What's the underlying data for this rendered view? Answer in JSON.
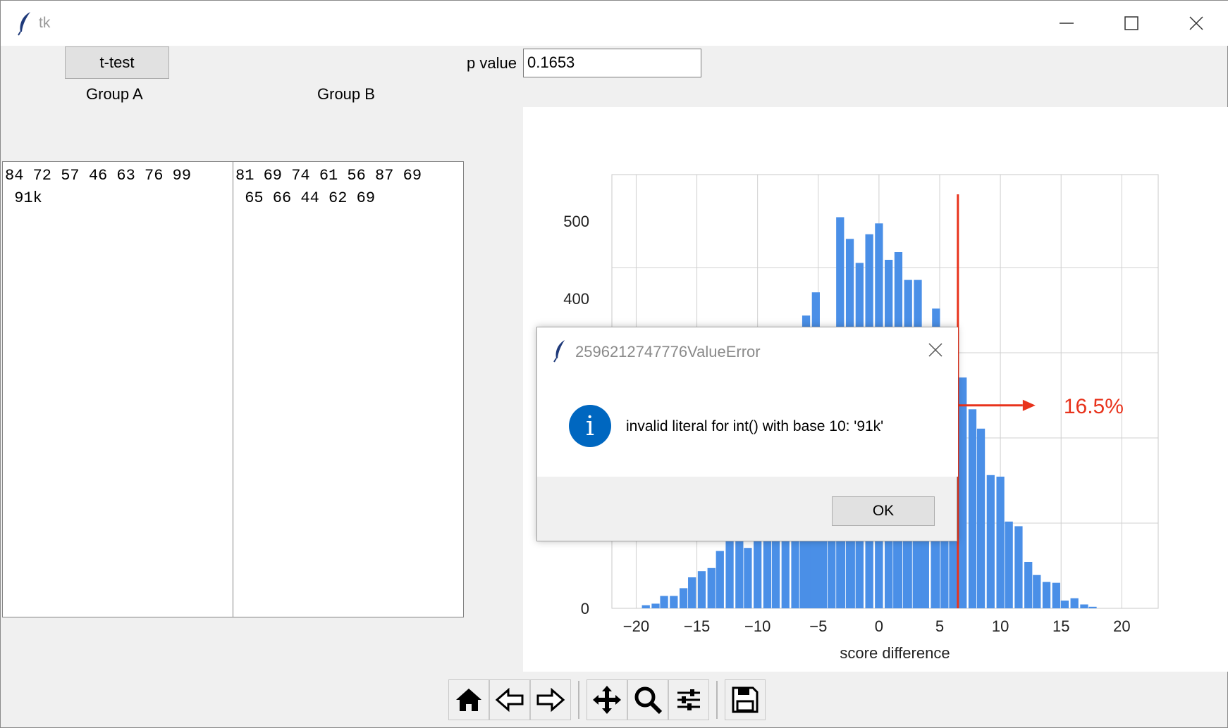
{
  "window": {
    "title": "tk"
  },
  "controls": {
    "ttest_label": "t-test",
    "pvalue_label": "p value",
    "pvalue_value": "0.1653",
    "group_a_label": "Group A",
    "group_b_label": "Group B",
    "group_a_text": "84 72 57 46 63 76 99\n 91k",
    "group_b_text": "81 69 74 61 56 87 69\n 65 66 44 62 69"
  },
  "toolbar": {
    "buttons": [
      "home-icon",
      "back-icon",
      "forward-icon",
      "pan-icon",
      "zoom-icon",
      "configure-icon",
      "save-icon"
    ]
  },
  "dialog": {
    "title": "2596212747776ValueError",
    "message": "invalid literal for int() with base 10: '91k'",
    "ok_label": "OK",
    "icon": "info-icon"
  },
  "colors": {
    "bar": "#4a8fe7",
    "marker": "#e8331c",
    "info": "#0067c0"
  },
  "chart_data": {
    "type": "bar",
    "xlabel": "score difference",
    "ylabel": "",
    "xlim": [
      -22,
      23
    ],
    "ylim": [
      0,
      560
    ],
    "xticks": [
      -20,
      -15,
      -10,
      -5,
      0,
      5,
      10,
      15,
      20
    ],
    "xtick_labels": [
      "−20",
      "−15",
      "−10",
      "−5",
      "0",
      "5",
      "10",
      "15",
      "20"
    ],
    "yticks": [
      0,
      400,
      500
    ],
    "ytick_labels": [
      "0",
      "400",
      "500"
    ],
    "grid": true,
    "bin_width": 0.77,
    "bins": [
      {
        "x": -19.2,
        "y": 4
      },
      {
        "x": -18.4,
        "y": 6
      },
      {
        "x": -17.7,
        "y": 16
      },
      {
        "x": -16.9,
        "y": 16
      },
      {
        "x": -16.1,
        "y": 26
      },
      {
        "x": -15.4,
        "y": 40
      },
      {
        "x": -14.6,
        "y": 48
      },
      {
        "x": -13.8,
        "y": 52
      },
      {
        "x": -13.1,
        "y": 74
      },
      {
        "x": -12.3,
        "y": 90
      },
      {
        "x": -11.5,
        "y": 96
      },
      {
        "x": -10.8,
        "y": 78
      },
      {
        "x": -10.0,
        "y": 120
      },
      {
        "x": -9.2,
        "y": 120
      },
      {
        "x": -8.5,
        "y": 120
      },
      {
        "x": -7.7,
        "y": 120
      },
      {
        "x": -6.9,
        "y": 120
      },
      {
        "x": -6.2,
        "y": 120
      },
      {
        "x": -5.4,
        "y": 120
      },
      {
        "x": -4.6,
        "y": 120
      },
      {
        "x": -3.9,
        "y": 120
      },
      {
        "x": -3.1,
        "y": 120
      },
      {
        "x": -2.3,
        "y": 120
      },
      {
        "x": -1.6,
        "y": 120
      },
      {
        "x": -0.8,
        "y": 120
      },
      {
        "x": 0.0,
        "y": 120
      },
      {
        "x": 0.8,
        "y": 120
      },
      {
        "x": 1.5,
        "y": 120
      },
      {
        "x": 2.3,
        "y": 120
      },
      {
        "x": 3.1,
        "y": 120
      },
      {
        "x": 3.8,
        "y": 120
      },
      {
        "x": 4.6,
        "y": 120
      },
      {
        "x": 5.4,
        "y": 120
      },
      {
        "x": 6.1,
        "y": 120
      },
      {
        "x": 6.9,
        "y": 298
      },
      {
        "x": 7.7,
        "y": 257
      },
      {
        "x": 8.4,
        "y": 232
      },
      {
        "x": 9.2,
        "y": 172
      },
      {
        "x": 10.0,
        "y": 170
      },
      {
        "x": 10.7,
        "y": 112
      },
      {
        "x": 11.5,
        "y": 106
      },
      {
        "x": 12.3,
        "y": 60
      },
      {
        "x": 13.0,
        "y": 43
      },
      {
        "x": 13.8,
        "y": 34
      },
      {
        "x": 14.6,
        "y": 33
      },
      {
        "x": 15.3,
        "y": 10
      },
      {
        "x": 16.1,
        "y": 13
      },
      {
        "x": 16.9,
        "y": 5
      },
      {
        "x": 17.6,
        "y": 2
      }
    ],
    "top_bins": [
      {
        "x": -6.0,
        "y": 378
      },
      {
        "x": -5.2,
        "y": 408
      },
      {
        "x": -3.2,
        "y": 505
      },
      {
        "x": -2.4,
        "y": 477
      },
      {
        "x": -1.6,
        "y": 446
      },
      {
        "x": -0.8,
        "y": 483
      },
      {
        "x": 0.0,
        "y": 497
      },
      {
        "x": 0.8,
        "y": 450
      },
      {
        "x": 1.6,
        "y": 460
      },
      {
        "x": 2.4,
        "y": 424
      },
      {
        "x": 3.2,
        "y": 424
      },
      {
        "x": 4.7,
        "y": 387
      }
    ],
    "marker": {
      "x": 6.5,
      "label": "16.5%"
    }
  }
}
